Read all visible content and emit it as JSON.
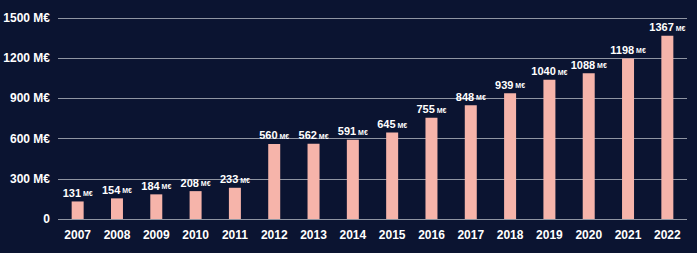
{
  "chart_data": {
    "type": "bar",
    "categories": [
      "2007",
      "2008",
      "2009",
      "2010",
      "2011",
      "2012",
      "2013",
      "2014",
      "2015",
      "2016",
      "2017",
      "2018",
      "2019",
      "2020",
      "2021",
      "2022"
    ],
    "values": [
      131,
      154,
      184,
      208,
      233,
      560,
      562,
      591,
      645,
      755,
      848,
      939,
      1040,
      1088,
      1198,
      1367
    ],
    "value_labels": [
      "131 M€",
      "154 M€",
      "184 M€",
      "208 M€",
      "233 M€",
      "560 M€",
      "562 M€",
      "591 M€",
      "645 M€",
      "755 M€",
      "848 M€",
      "939 M€",
      "1040 M€",
      "1088 M€",
      "1198 M€",
      "1367 M€"
    ],
    "color": "#f6b4aa",
    "ylim": [
      0,
      1500
    ],
    "yticks": [
      0,
      {
        "value": 300,
        "label": "300 M€"
      },
      {
        "value": 600,
        "label": "600 M€"
      },
      {
        "value": 900,
        "label": "900 M€"
      },
      {
        "value": 1200,
        "label": "1200 M€"
      },
      {
        "value": 1500,
        "label": "1500 M€"
      }
    ],
    "grid": true,
    "data_labels": true
  }
}
